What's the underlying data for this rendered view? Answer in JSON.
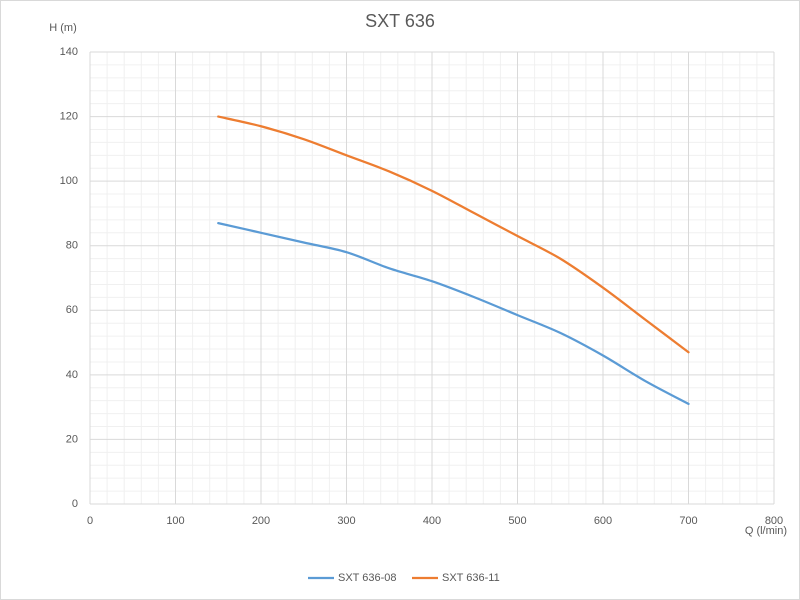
{
  "chart_data": {
    "type": "line",
    "title": "SXT 636",
    "y_label": "H (m)",
    "x_label": "Q (l/min)",
    "xlim": [
      0,
      800
    ],
    "xticks": [
      0,
      100,
      200,
      300,
      400,
      500,
      600,
      700,
      800
    ],
    "ylim": [
      0,
      140
    ],
    "yticks": [
      0,
      20,
      40,
      60,
      80,
      100,
      120,
      140
    ],
    "grid": true,
    "legend": "bottom",
    "x": [
      150,
      200,
      250,
      300,
      350,
      400,
      450,
      500,
      550,
      600,
      650,
      700
    ],
    "series": [
      {
        "name": "SXT 636-08",
        "color": "#5b9bd5",
        "values": [
          87,
          84,
          81,
          78,
          73,
          69,
          64,
          58.5,
          53,
          46,
          38,
          31
        ]
      },
      {
        "name": "SXT 636-11",
        "color": "#ed7d31",
        "values": [
          120,
          117,
          113,
          108,
          103,
          97,
          90,
          83,
          76,
          67,
          57,
          47
        ]
      }
    ]
  }
}
